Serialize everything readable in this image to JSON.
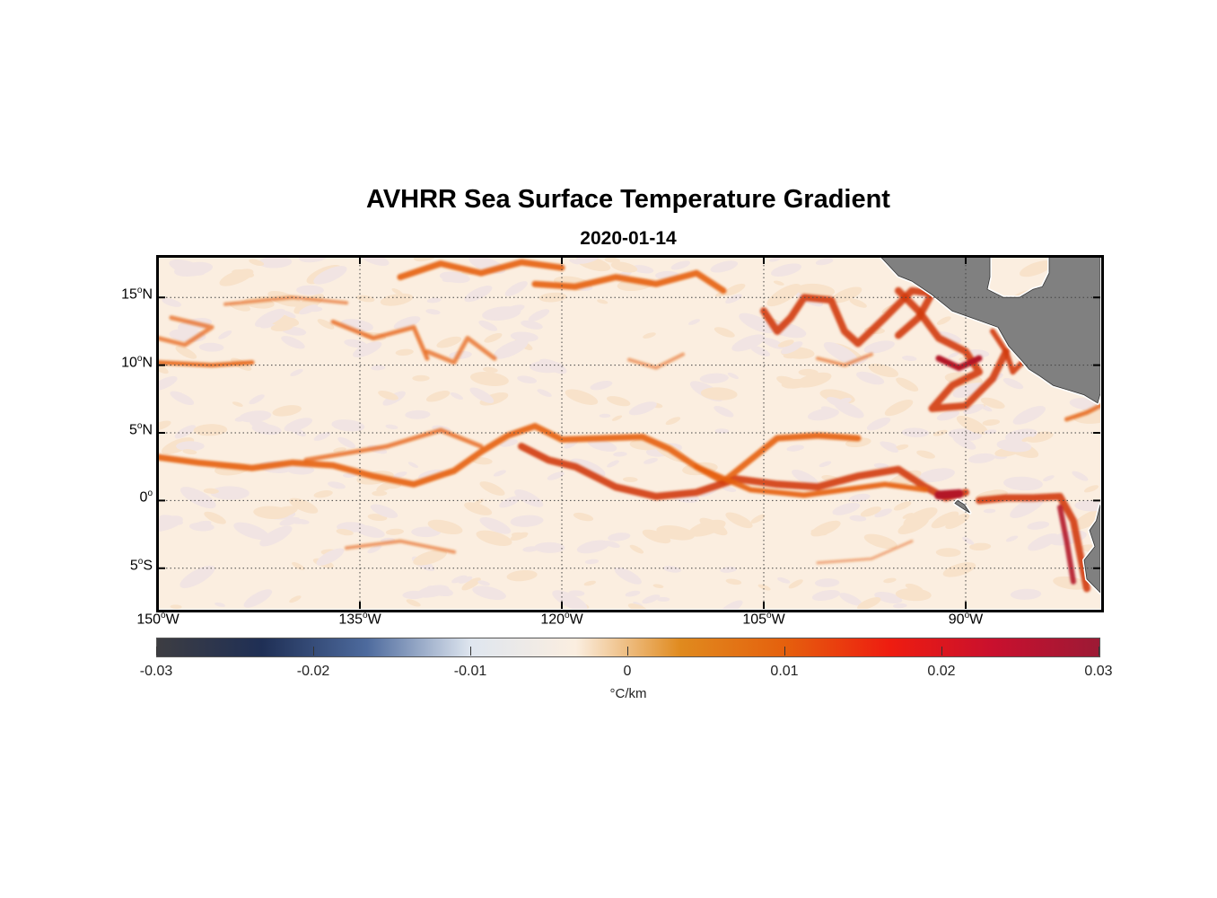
{
  "title": "AVHRR Sea Surface Temperature Gradient",
  "subtitle": "2020-01-14",
  "map": {
    "lon_range": [
      -150,
      -80
    ],
    "lat_range": [
      -8,
      18
    ],
    "lat_ticks": [
      {
        "lat": 15,
        "label": "15",
        "hemi": "N"
      },
      {
        "lat": 10,
        "label": "10",
        "hemi": "N"
      },
      {
        "lat": 5,
        "label": "5",
        "hemi": "N"
      },
      {
        "lat": 0,
        "label": "0",
        "hemi": ""
      },
      {
        "lat": -5,
        "label": "5",
        "hemi": "S"
      }
    ],
    "lon_ticks": [
      {
        "lon": -150,
        "label": "150",
        "hemi": "W"
      },
      {
        "lon": -135,
        "label": "135",
        "hemi": "W"
      },
      {
        "lon": -120,
        "label": "120",
        "hemi": "W"
      },
      {
        "lon": -105,
        "label": "105",
        "hemi": "W"
      },
      {
        "lon": -90,
        "label": "90",
        "hemi": "W"
      }
    ],
    "land_color": "#808080",
    "ocean_base_color": "#fbeee0",
    "front_colors": [
      "#e5600d",
      "#d13a0c",
      "#b31628"
    ]
  },
  "colorbar": {
    "ticks": [
      "-0.03",
      "-0.02",
      "-0.01",
      "0",
      "0.01",
      "0.02",
      "0.03"
    ],
    "unit": "°C/km",
    "range": [
      -0.03,
      0.03
    ],
    "stops": [
      "#3d3d42",
      "#1f2f55",
      "#4d6a9d",
      "#dfe6ef",
      "#fbeee0",
      "#e08a1e",
      "#e5600d",
      "#ee1c10",
      "#c8102e",
      "#9c1a35"
    ]
  }
}
